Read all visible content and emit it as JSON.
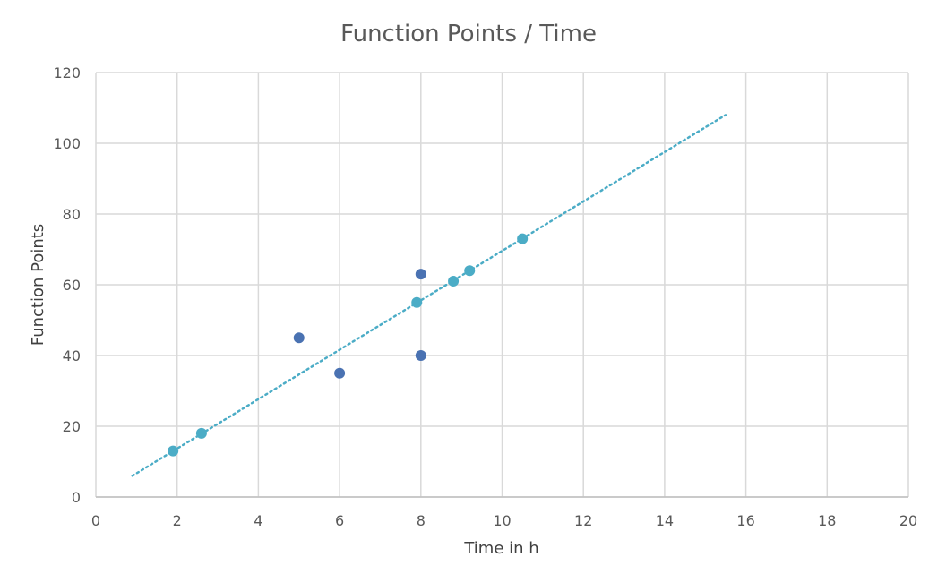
{
  "chart_data": {
    "type": "scatter",
    "title": "Function Points / Time",
    "xlabel": "Time in h",
    "ylabel": "Function Points",
    "xlim": [
      0,
      20
    ],
    "ylim": [
      0,
      120
    ],
    "x_ticks": [
      0,
      2,
      4,
      6,
      8,
      10,
      12,
      14,
      16,
      18,
      20
    ],
    "y_ticks": [
      0,
      20,
      40,
      60,
      80,
      100,
      120
    ],
    "grid": true,
    "legend": "none",
    "series": [
      {
        "color": "#4a72b2",
        "points": [
          {
            "x": 5,
            "y": 45
          },
          {
            "x": 6,
            "y": 35
          },
          {
            "x": 8,
            "y": 63
          },
          {
            "x": 8,
            "y": 40
          }
        ]
      },
      {
        "color": "#4bacc6",
        "points": [
          {
            "x": 1.9,
            "y": 13
          },
          {
            "x": 2.6,
            "y": 18
          },
          {
            "x": 7.9,
            "y": 55
          },
          {
            "x": 8.8,
            "y": 61
          },
          {
            "x": 9.2,
            "y": 64
          },
          {
            "x": 10.5,
            "y": 73
          }
        ]
      }
    ],
    "trendline": {
      "style": "dotted",
      "color": "#4bacc6",
      "from": {
        "x": 0.9,
        "y": 6
      },
      "to": {
        "x": 15.5,
        "y": 108
      }
    }
  }
}
